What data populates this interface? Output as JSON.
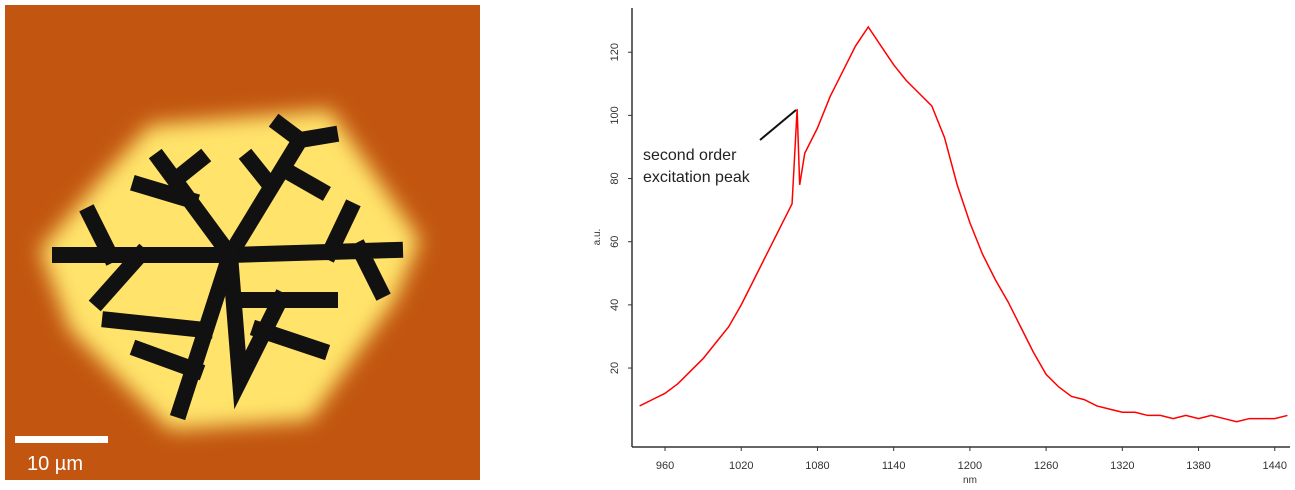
{
  "image": {
    "scale_bar_label": "10 µm"
  },
  "chart_data": {
    "type": "line",
    "x_label": "nm",
    "y_label": "a.u.",
    "annotation": [
      "second order",
      "excitation peak"
    ],
    "x": [
      940,
      950,
      960,
      970,
      980,
      990,
      1000,
      1010,
      1020,
      1030,
      1040,
      1050,
      1060,
      1064,
      1066,
      1070,
      1080,
      1090,
      1100,
      1110,
      1120,
      1130,
      1140,
      1150,
      1160,
      1170,
      1180,
      1190,
      1200,
      1210,
      1220,
      1230,
      1240,
      1250,
      1260,
      1270,
      1280,
      1290,
      1300,
      1310,
      1320,
      1330,
      1340,
      1350,
      1360,
      1370,
      1380,
      1390,
      1400,
      1410,
      1420,
      1430,
      1440,
      1450
    ],
    "series": [
      {
        "color": "#ff0000",
        "values": [
          8,
          10,
          12,
          15,
          19,
          23,
          28,
          33,
          40,
          48,
          56,
          64,
          72,
          102,
          78,
          88,
          96,
          106,
          114,
          122,
          128,
          122,
          116,
          111,
          107,
          103,
          93,
          78,
          66,
          56,
          48,
          41,
          33,
          25,
          18,
          14,
          11,
          10,
          8,
          7,
          6,
          6,
          5,
          5,
          4,
          5,
          4,
          5,
          4,
          3,
          4,
          4,
          4,
          5
        ]
      }
    ],
    "xlim": [
      934,
      1452
    ],
    "ylim": [
      -5,
      134
    ],
    "xticks": [
      960,
      1020,
      1080,
      1140,
      1200,
      1260,
      1320,
      1380,
      1440
    ],
    "yticks": [
      20,
      40,
      60,
      80,
      100,
      120
    ]
  }
}
